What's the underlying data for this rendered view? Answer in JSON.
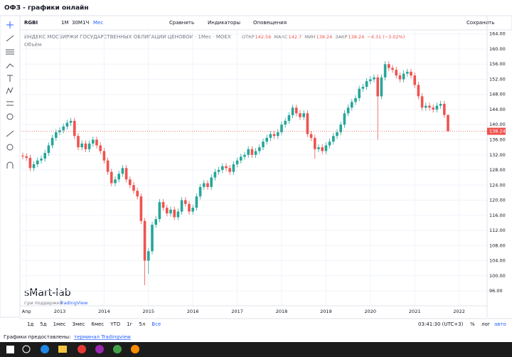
{
  "window_title": "ОФЗ - графики онлайн",
  "toolbar": {
    "symbol": "RGBI",
    "intervals": [
      "1М",
      "30М",
      "1Ч",
      "Мес"
    ],
    "compare": "Сравнить",
    "indicators": "Индикаторы",
    "alerts": "Оповещения",
    "save": "Сохранить"
  },
  "watermark": {
    "brand": "sMart-lab",
    "powered_by": "при поддержке",
    "provider": "TradingView"
  },
  "bottom_bar": {
    "ranges": [
      "1д",
      "5д",
      "1мес",
      "3мес",
      "6мес",
      "YTD",
      "1г",
      "5л",
      "Все"
    ],
    "clock": "03:41:30 (UTC+3)",
    "percent": "%",
    "log": "лог",
    "auto": "авто"
  },
  "footer": {
    "text": "Графики предоставлены:",
    "link": "терминал Tradingview"
  },
  "chart_data": {
    "type": "candlestick",
    "title": "ИНДЕКС МОСБИРЖИ ГОСУДАРСТВЕННЫХ ОБЛИГАЦИЙ ЦЕНОВОЙ · 1Мес · MOEX",
    "volume_label": "Объём",
    "ohlc_labels": {
      "open": "ОТКР",
      "high": "МАКС",
      "low": "МИН",
      "close": "ЗАКР"
    },
    "change_label": "−4.31 (−3.02%)",
    "up_color": "#26a69a",
    "down_color": "#ef5350",
    "ylim": [
      92.05,
      165.08
    ],
    "yticks": [
      {
        "value": 96,
        "label": "96.00"
      },
      {
        "value": 100,
        "label": "100.00"
      },
      {
        "value": 104,
        "label": "104.00"
      },
      {
        "value": 108,
        "label": "108.00"
      },
      {
        "value": 112,
        "label": "112.00"
      },
      {
        "value": 116,
        "label": "116.00"
      },
      {
        "value": 120,
        "label": "120.00"
      },
      {
        "value": 124,
        "label": "124.00"
      },
      {
        "value": 128,
        "label": "128.00"
      },
      {
        "value": 132,
        "label": "132.00"
      },
      {
        "value": 136,
        "label": "136.00"
      },
      {
        "value": 140,
        "label": "140.00"
      },
      {
        "value": 144,
        "label": "144.00"
      },
      {
        "value": 148,
        "label": "148.00"
      },
      {
        "value": 152,
        "label": "152.00"
      },
      {
        "value": 156,
        "label": "156.00"
      },
      {
        "value": 160,
        "label": "160.00"
      },
      {
        "value": 164,
        "label": "164.00"
      }
    ],
    "xlim": [
      -0.5,
      126
    ],
    "xticks": [
      {
        "value": 1,
        "label": "Апр"
      },
      {
        "value": 10,
        "label": "2013"
      },
      {
        "value": 22,
        "label": "2014"
      },
      {
        "value": 34,
        "label": "2015"
      },
      {
        "value": 46,
        "label": "2016"
      },
      {
        "value": 58,
        "label": "2017"
      },
      {
        "value": 70,
        "label": "2018"
      },
      {
        "value": 82,
        "label": "2019"
      },
      {
        "value": 94,
        "label": "2020"
      },
      {
        "value": 106,
        "label": "2021"
      },
      {
        "value": 118,
        "label": "2022"
      }
    ],
    "open": [
      131.8,
      131.6,
      131.2,
      128.5,
      129.5,
      130.5,
      131.0,
      132.5,
      134.5,
      136.5,
      138.0,
      138.5,
      139.5,
      140.5,
      141.0,
      137.0,
      134.0,
      135.0,
      133.5,
      135.0,
      136.0,
      134.5,
      133.0,
      130.5,
      127.5,
      124.5,
      125.5,
      127.0,
      128.5,
      125.5,
      124.0,
      122.5,
      121.0,
      114.5,
      104.0,
      106.5,
      113.5,
      115.0,
      119.5,
      118.0,
      116.5,
      117.5,
      115.5,
      117.0,
      120.0,
      119.0,
      117.0,
      118.0,
      121.0,
      123.5,
      124.5,
      123.5,
      126.0,
      127.5,
      128.0,
      129.0,
      128.5,
      127.5,
      129.5,
      130.5,
      131.5,
      132.0,
      133.5,
      132.0,
      133.0,
      134.0,
      135.5,
      136.5,
      137.5,
      137.0,
      138.0,
      140.0,
      141.0,
      142.5,
      144.5,
      143.0,
      142.0,
      143.0,
      137.5,
      136.5,
      133.5,
      134.0,
      133.0,
      134.5,
      135.5,
      137.0,
      138.0,
      140.0,
      143.0,
      144.5,
      146.0,
      147.0,
      149.5,
      150.0,
      151.5,
      152.0,
      152.5,
      147.5,
      152.5,
      156.0,
      155.0,
      154.5,
      153.0,
      152.0,
      153.5,
      154.0,
      153.0,
      150.5,
      147.5,
      144.5,
      145.0,
      144.5,
      144.0,
      145.0,
      145.5,
      142.56
    ],
    "high": [
      132.6,
      132.4,
      132.0,
      130.3,
      131.3,
      131.8,
      133.3,
      135.3,
      137.3,
      138.8,
      139.3,
      140.3,
      141.3,
      141.8,
      141.8,
      137.8,
      135.8,
      135.8,
      135.8,
      136.8,
      136.8,
      135.3,
      133.8,
      131.3,
      128.3,
      126.3,
      127.8,
      129.3,
      129.3,
      126.3,
      124.8,
      123.3,
      121.8,
      115.3,
      107.3,
      114.3,
      115.8,
      120.3,
      120.3,
      118.8,
      118.3,
      118.3,
      117.8,
      120.8,
      120.8,
      119.8,
      118.8,
      121.8,
      124.3,
      125.3,
      125.3,
      126.8,
      128.3,
      128.8,
      129.8,
      129.8,
      129.3,
      130.3,
      131.3,
      132.3,
      132.8,
      134.3,
      134.3,
      133.8,
      134.8,
      136.3,
      137.3,
      138.3,
      138.3,
      138.8,
      140.8,
      141.8,
      143.3,
      145.3,
      145.3,
      143.8,
      143.8,
      143.8,
      138.3,
      137.3,
      134.8,
      134.8,
      135.3,
      136.3,
      137.8,
      138.8,
      140.8,
      143.8,
      145.3,
      146.8,
      147.8,
      150.3,
      150.8,
      152.3,
      152.8,
      153.3,
      153.3,
      153.3,
      156.8,
      156.8,
      155.8,
      155.3,
      153.8,
      154.3,
      154.8,
      154.8,
      153.8,
      151.3,
      148.3,
      145.8,
      145.8,
      145.3,
      145.8,
      146.3,
      146.3,
      142.7
    ],
    "low": [
      130.8,
      130.4,
      127.7,
      127.7,
      128.7,
      129.7,
      130.2,
      131.7,
      133.7,
      135.7,
      137.2,
      137.7,
      138.7,
      139.7,
      136.2,
      133.2,
      133.2,
      132.7,
      132.7,
      134.2,
      133.7,
      132.2,
      129.7,
      126.7,
      123.7,
      123.7,
      124.7,
      126.2,
      124.7,
      123.2,
      121.7,
      120.2,
      113.7,
      97.5,
      100.5,
      105.7,
      112.7,
      114.2,
      117.2,
      115.7,
      115.7,
      114.7,
      114.7,
      116.2,
      118.2,
      116.2,
      116.2,
      117.2,
      120.2,
      122.7,
      122.7,
      122.7,
      125.2,
      126.7,
      127.2,
      127.7,
      126.7,
      126.7,
      128.7,
      129.7,
      130.7,
      131.2,
      131.2,
      131.2,
      132.2,
      133.2,
      134.7,
      135.7,
      136.2,
      136.2,
      137.2,
      139.2,
      140.2,
      141.7,
      142.2,
      141.2,
      141.2,
      136.7,
      135.7,
      131.0,
      132.7,
      132.2,
      132.2,
      133.7,
      134.7,
      136.2,
      137.2,
      139.2,
      142.2,
      143.7,
      145.2,
      146.2,
      148.7,
      149.2,
      150.7,
      151.2,
      136.0,
      146.7,
      151.7,
      154.2,
      153.7,
      152.2,
      151.2,
      151.2,
      152.7,
      152.2,
      149.7,
      146.7,
      143.7,
      143.7,
      143.7,
      143.2,
      143.2,
      144.2,
      141.8,
      138.24
    ],
    "close": [
      131.6,
      131.2,
      128.5,
      129.5,
      130.5,
      131.0,
      132.5,
      134.5,
      136.5,
      138.0,
      138.5,
      139.5,
      140.5,
      141.0,
      137.0,
      134.0,
      135.0,
      133.5,
      135.0,
      136.0,
      134.5,
      133.0,
      130.5,
      127.5,
      124.5,
      125.5,
      127.0,
      128.5,
      125.5,
      124.0,
      122.5,
      121.0,
      114.5,
      104.0,
      106.5,
      113.5,
      115.0,
      119.5,
      118.0,
      116.5,
      117.5,
      115.5,
      117.0,
      120.0,
      119.0,
      117.0,
      118.0,
      121.0,
      123.5,
      124.5,
      123.5,
      126.0,
      127.5,
      128.0,
      129.0,
      128.5,
      127.5,
      129.5,
      130.5,
      131.5,
      132.0,
      133.5,
      132.0,
      133.0,
      134.0,
      135.5,
      136.5,
      137.5,
      137.0,
      138.0,
      140.0,
      141.0,
      142.5,
      144.5,
      143.0,
      142.0,
      143.0,
      137.5,
      136.5,
      133.5,
      134.0,
      133.0,
      134.5,
      135.5,
      137.0,
      138.0,
      140.0,
      143.0,
      144.5,
      146.0,
      147.0,
      149.5,
      150.0,
      151.5,
      152.0,
      152.5,
      147.5,
      152.5,
      156.0,
      155.0,
      154.5,
      153.0,
      152.0,
      153.5,
      154.0,
      153.0,
      150.5,
      147.5,
      144.5,
      145.0,
      144.5,
      144.0,
      145.0,
      145.5,
      142.56,
      138.24
    ]
  }
}
